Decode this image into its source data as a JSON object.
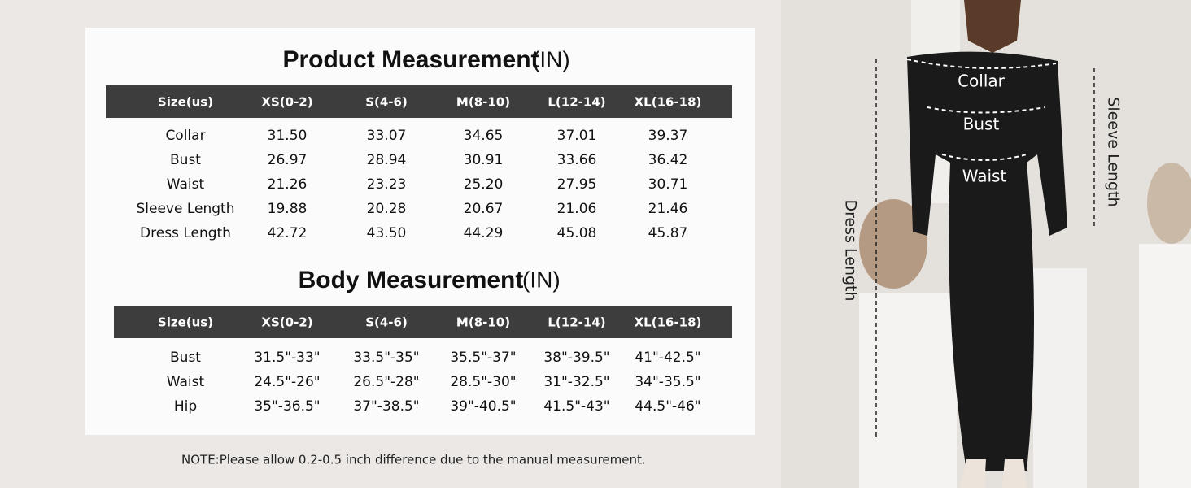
{
  "product_table": {
    "title": "Product Measurement",
    "unit": "(IN)",
    "headers": [
      "Size(us)",
      "XS(0-2)",
      "S(4-6)",
      "M(8-10)",
      "L(12-14)",
      "XL(16-18)"
    ],
    "rows": [
      [
        "Collar",
        "31.50",
        "33.07",
        "34.65",
        "37.01",
        "39.37"
      ],
      [
        "Bust",
        "26.97",
        "28.94",
        "30.91",
        "33.66",
        "36.42"
      ],
      [
        "Waist",
        "21.26",
        "23.23",
        "25.20",
        "27.95",
        "30.71"
      ],
      [
        "Sleeve Length",
        "19.88",
        "20.28",
        "20.67",
        "21.06",
        "21.46"
      ],
      [
        "Dress Length",
        "42.72",
        "43.50",
        "44.29",
        "45.08",
        "45.87"
      ]
    ]
  },
  "body_table": {
    "title": "Body Measurement",
    "unit": "(IN)",
    "headers": [
      "Size(us)",
      "XS(0-2)",
      "S(4-6)",
      "M(8-10)",
      "L(12-14)",
      "XL(16-18)"
    ],
    "rows": [
      [
        "Bust",
        "31.5\"-33\"",
        "33.5\"-35\"",
        "35.5\"-37\"",
        "38\"-39.5\"",
        "41\"-42.5\""
      ],
      [
        "Waist",
        "24.5\"-26\"",
        "26.5\"-28\"",
        "28.5\"-30\"",
        "31\"-32.5\"",
        "34\"-35.5\""
      ],
      [
        "Hip",
        "35\"-36.5\"",
        "37\"-38.5\"",
        "39\"-40.5\"",
        "41.5\"-43\"",
        "44.5\"-46\""
      ]
    ]
  },
  "note": "NOTE:Please allow 0.2-0.5 inch difference due to the manual measurement.",
  "model_labels": {
    "collar": "Collar",
    "bust": "Bust",
    "waist": "Waist",
    "dress_length": "Dress Length",
    "sleeve_length": "Sleeve Length"
  }
}
